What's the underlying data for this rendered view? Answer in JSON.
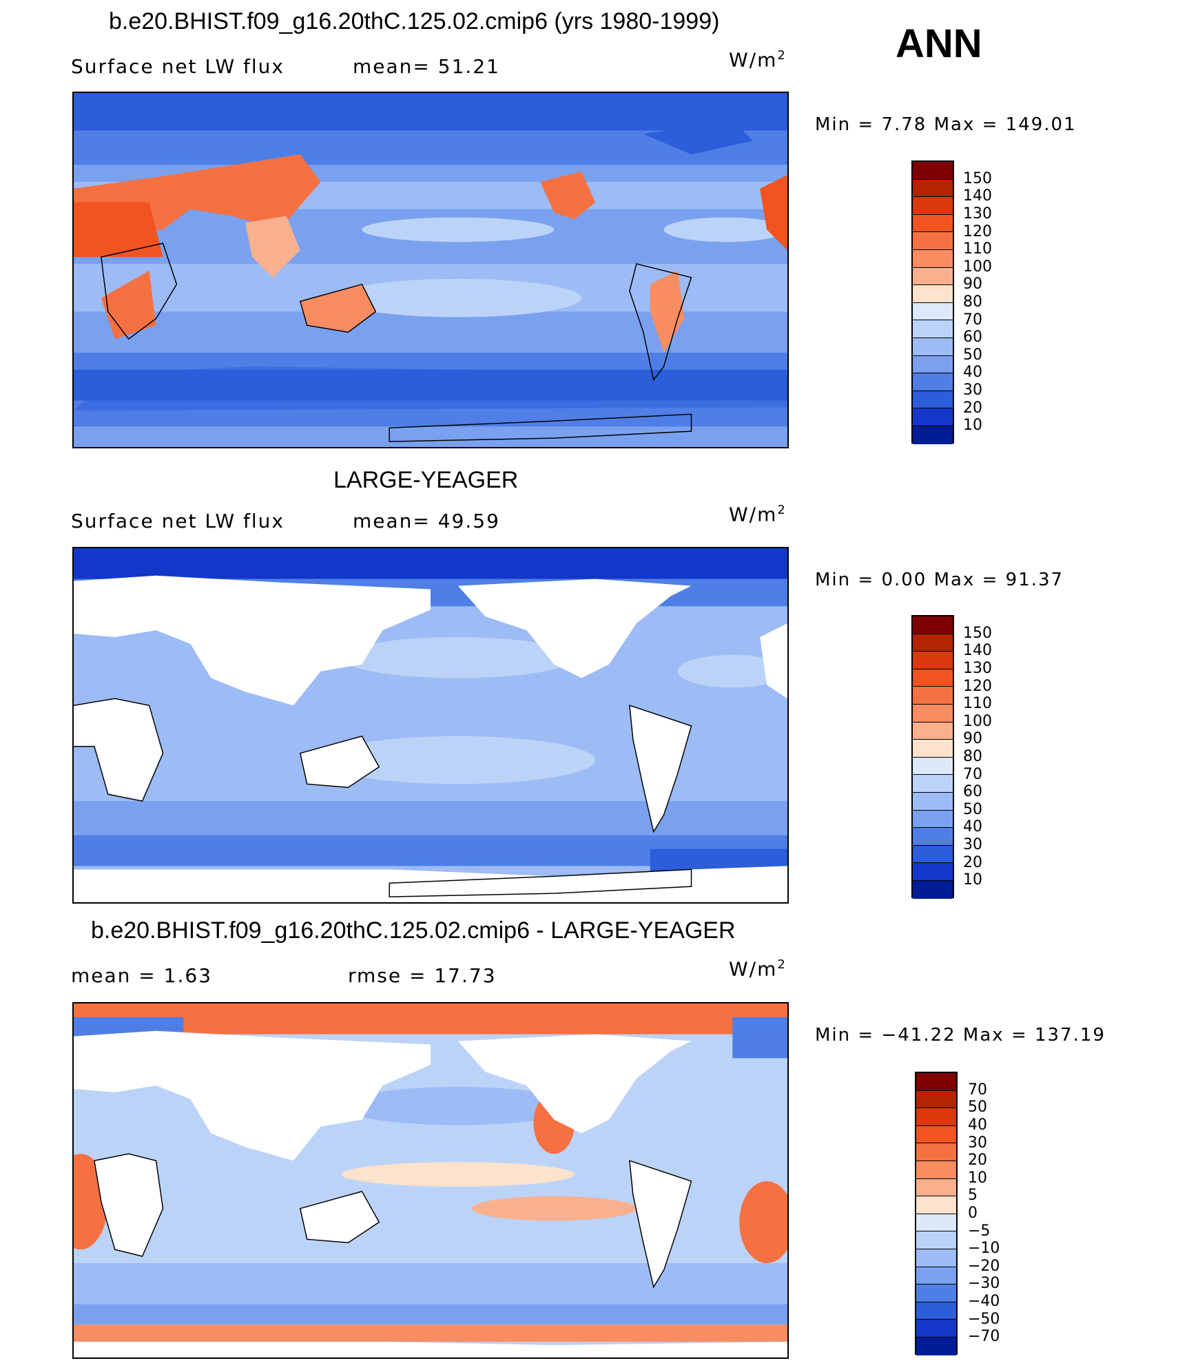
{
  "header": {
    "season": "ANN"
  },
  "panels": [
    {
      "id": "model",
      "title": "b.e20.BHIST.f09_g16.20thC.125.02.cmip6 (yrs 1980-1999)",
      "variable": "Surface net LW flux",
      "stat": "mean=   51.21",
      "units_base": "W/m",
      "units_exp": "2",
      "minmax": "Min  =    7.78  Max  =  149.01",
      "colorbar": {
        "labels": [
          "150",
          "140",
          "130",
          "120",
          "110",
          "100",
          "90",
          "80",
          "70",
          "60",
          "50",
          "40",
          "30",
          "20",
          "10"
        ],
        "colors": [
          "#7f0000",
          "#b32400",
          "#d9390d",
          "#f2541f",
          "#f57142",
          "#f78d61",
          "#f9b08e",
          "#fde2cc",
          "#dce9fb",
          "#bcd3f8",
          "#9dbbf5",
          "#7aa1f0",
          "#4f7fe6",
          "#2c5ddb",
          "#1337c9",
          "#001c96"
        ]
      }
    },
    {
      "id": "obs",
      "title": "LARGE-YEAGER",
      "variable": "Surface net LW flux",
      "stat": "mean=   49.59",
      "units_base": "W/m",
      "units_exp": "2",
      "minmax": "Min  =    0.00  Max  =   91.37",
      "colorbar": {
        "labels": [
          "150",
          "140",
          "130",
          "120",
          "110",
          "100",
          "90",
          "80",
          "70",
          "60",
          "50",
          "40",
          "30",
          "20",
          "10"
        ],
        "colors": [
          "#7f0000",
          "#b32400",
          "#d9390d",
          "#f2541f",
          "#f57142",
          "#f78d61",
          "#f9b08e",
          "#fde2cc",
          "#dce9fb",
          "#bcd3f8",
          "#9dbbf5",
          "#7aa1f0",
          "#4f7fe6",
          "#2c5ddb",
          "#1337c9",
          "#001c96"
        ]
      }
    },
    {
      "id": "diff",
      "title": "b.e20.BHIST.f09_g16.20thC.125.02.cmip6 - LARGE-YEAGER",
      "stat_left": "mean  =     1.63",
      "stat_right": "rmse  =    17.73",
      "units_base": "W/m",
      "units_exp": "2",
      "minmax": "Min  = −41.22  Max  =  137.19",
      "colorbar": {
        "labels": [
          "70",
          "50",
          "40",
          "30",
          "20",
          "10",
          "5",
          "0",
          "−5",
          "−10",
          "−20",
          "−30",
          "−40",
          "−50",
          "−70"
        ],
        "colors": [
          "#7f0000",
          "#b32400",
          "#d9390d",
          "#f2541f",
          "#f57142",
          "#f78d61",
          "#f9b08e",
          "#fde2cc",
          "#dce9fb",
          "#bcd3f8",
          "#9dbbf5",
          "#7aa1f0",
          "#4f7fe6",
          "#2c5ddb",
          "#1337c9",
          "#001c96"
        ]
      }
    }
  ]
}
